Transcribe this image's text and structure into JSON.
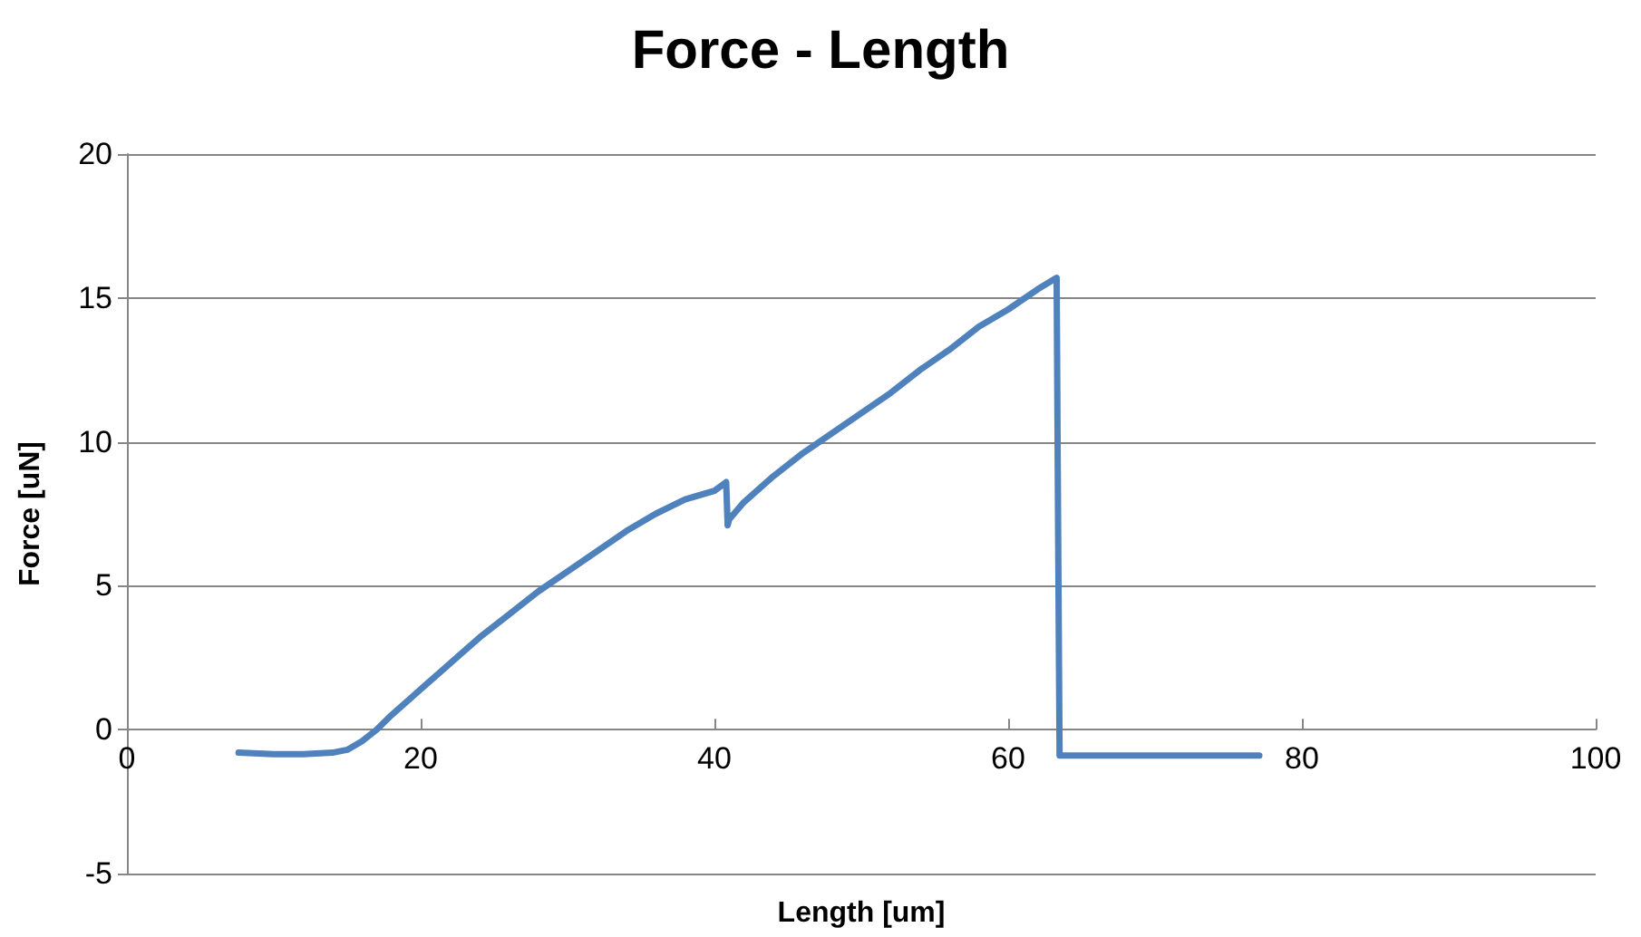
{
  "chart_data": {
    "type": "line",
    "title": "Force - Length",
    "xlabel": "Length [um]",
    "ylabel": "Force [uN]",
    "series": [
      {
        "color": "#4f81bd",
        "x": [
          7.6,
          10,
          12,
          14,
          15,
          16,
          17,
          18,
          20,
          22,
          24,
          26,
          28,
          30,
          32,
          34,
          36,
          38,
          40,
          40.8,
          40.9,
          41,
          42,
          44,
          46,
          48,
          50,
          52,
          54,
          56,
          58,
          60,
          62,
          63.3,
          63.4,
          63.5,
          65,
          70,
          75,
          77.1
        ],
        "values": [
          -0.8,
          -0.85,
          -0.85,
          -0.8,
          -0.7,
          -0.4,
          0,
          0.5,
          1.4,
          2.3,
          3.2,
          4.0,
          4.8,
          5.5,
          6.2,
          6.9,
          7.5,
          8.0,
          8.3,
          8.6,
          7.1,
          7.3,
          7.9,
          8.8,
          9.6,
          10.3,
          11.0,
          11.7,
          12.5,
          13.2,
          14.0,
          14.6,
          15.3,
          15.7,
          7,
          -0.9,
          -0.9,
          -0.9,
          -0.9,
          -0.9
        ]
      }
    ],
    "xlim": [
      0,
      100
    ],
    "xticks": [
      0,
      20,
      40,
      60,
      80,
      100
    ],
    "ylim": [
      -5,
      20
    ],
    "yticks": [
      -5,
      0,
      5,
      10,
      15,
      20
    ],
    "grid": "y",
    "marker": "none",
    "line_style": "solid"
  }
}
